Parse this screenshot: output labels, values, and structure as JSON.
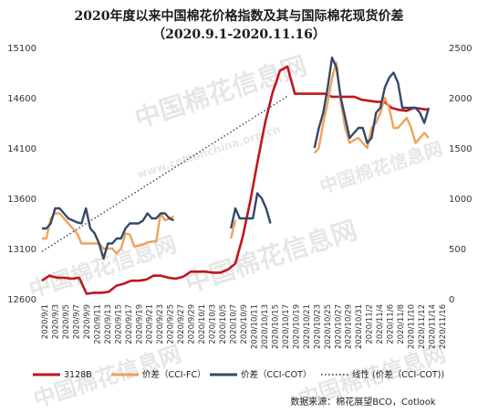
{
  "chart_data": {
    "type": "line",
    "title": "2020年度以来中国棉花价格指数及其与国际棉花现货价差",
    "subtitle": "（2020.9.1-2020.11.16）",
    "source": "数据来源：棉花展望BCO，Cotlook",
    "watermark": "中国棉花信息网",
    "watermark_url": "www.cottonchina.org.cn",
    "x_tick_labels": [
      "2020/9/1",
      "2020/9/3",
      "2020/9/5",
      "2020/9/7",
      "2020/9/9",
      "2020/9/11",
      "2020/9/13",
      "2020/9/15",
      "2020/9/17",
      "2020/9/19",
      "2020/9/21",
      "2020/9/23",
      "2020/9/25",
      "2020/9/27",
      "2020/9/29",
      "2020/10/1",
      "2020/10/3",
      "2020/10/5",
      "2020/10/7",
      "2020/10/9",
      "2020/10/11",
      "2020/10/13",
      "2020/10/15",
      "2020/10/17",
      "2020/10/19",
      "2020/10/21",
      "2020/10/23",
      "2020/10/25",
      "2020/10/27",
      "2020/10/29",
      "2020/10/31",
      "2020/11/2",
      "2020/11/4",
      "2020/11/6",
      "2020/11/8",
      "2020/11/10",
      "2020/11/12",
      "2020/11/14",
      "2020/11/16"
    ],
    "y_left": {
      "min": 12600,
      "max": 15100,
      "ticks": [
        12600,
        13100,
        13600,
        14100,
        14600,
        15100
      ]
    },
    "y_right": {
      "min": 0,
      "max": 2500,
      "ticks": [
        0,
        500,
        1000,
        1500,
        2000,
        2500
      ]
    },
    "series": [
      {
        "name": "3128B",
        "axis": "left",
        "color": "#c0161e",
        "values": [
          12780,
          12830,
          12810,
          12810,
          12800,
          12810,
          12650,
          12660,
          12660,
          12670,
          12730,
          12750,
          12780,
          12780,
          12790,
          12830,
          12830,
          12810,
          12800,
          12820,
          12870,
          12870,
          12870,
          12860,
          12860,
          12890,
          12950,
          13220,
          13570,
          13970,
          14350,
          14650,
          14870,
          14910,
          14640,
          14640,
          14640,
          14640,
          14640,
          14610,
          14610,
          14610,
          14610,
          14580,
          14570,
          14560,
          14560,
          14500,
          14480,
          14470,
          14500,
          14490,
          14480
        ]
      },
      {
        "name": "价差（CCI-FC）",
        "axis": "right",
        "color": "#f0a25a",
        "values": [
          600,
          600,
          800,
          850,
          850,
          800,
          750,
          700,
          650,
          550,
          550,
          550,
          550,
          550,
          500,
          500,
          500,
          450,
          500,
          650,
          640,
          520,
          530,
          540,
          560,
          570,
          570,
          850,
          780,
          800,
          820,
          null,
          null,
          null,
          null,
          null,
          null,
          null,
          null,
          null,
          null,
          null,
          null,
          600,
          780,
          null,
          null,
          null,
          null,
          null,
          null,
          null,
          null,
          null,
          null,
          null,
          null,
          null,
          null,
          null,
          null,
          null,
          1450,
          1500,
          1750,
          1950,
          2200,
          2350,
          1950,
          1700,
          1550,
          1580,
          1600,
          1550,
          1500,
          1700,
          1750,
          1850,
          2000,
          1900,
          1700,
          1700,
          1750,
          1800,
          1700,
          1550,
          1600,
          1650,
          1600
        ]
      },
      {
        "name": "价差（CCI-COT）",
        "axis": "right",
        "color": "#35486b",
        "values": [
          700,
          700,
          750,
          900,
          900,
          850,
          800,
          780,
          760,
          750,
          900,
          700,
          650,
          550,
          400,
          550,
          550,
          600,
          600,
          700,
          750,
          750,
          750,
          780,
          850,
          800,
          800,
          850,
          850,
          800,
          780,
          null,
          null,
          null,
          null,
          null,
          null,
          null,
          null,
          null,
          null,
          null,
          null,
          700,
          900,
          800,
          800,
          800,
          800,
          1050,
          1000,
          900,
          750,
          null,
          null,
          null,
          null,
          null,
          null,
          null,
          null,
          null,
          1500,
          1700,
          1850,
          2100,
          2400,
          2300,
          2000,
          1800,
          1600,
          1650,
          1700,
          1700,
          1550,
          1600,
          1850,
          1900,
          2100,
          2200,
          2250,
          2150,
          1900,
          1900,
          1900,
          1900,
          1850,
          1750,
          1900
        ]
      },
      {
        "name": "线性 (价差（CCI-COT))",
        "axis": "right",
        "color": "#35486b",
        "dotted": true,
        "trend": [
          [
            0,
            470
          ],
          [
            56,
            2020
          ]
        ]
      }
    ],
    "legend_position": "bottom",
    "grid": false
  }
}
